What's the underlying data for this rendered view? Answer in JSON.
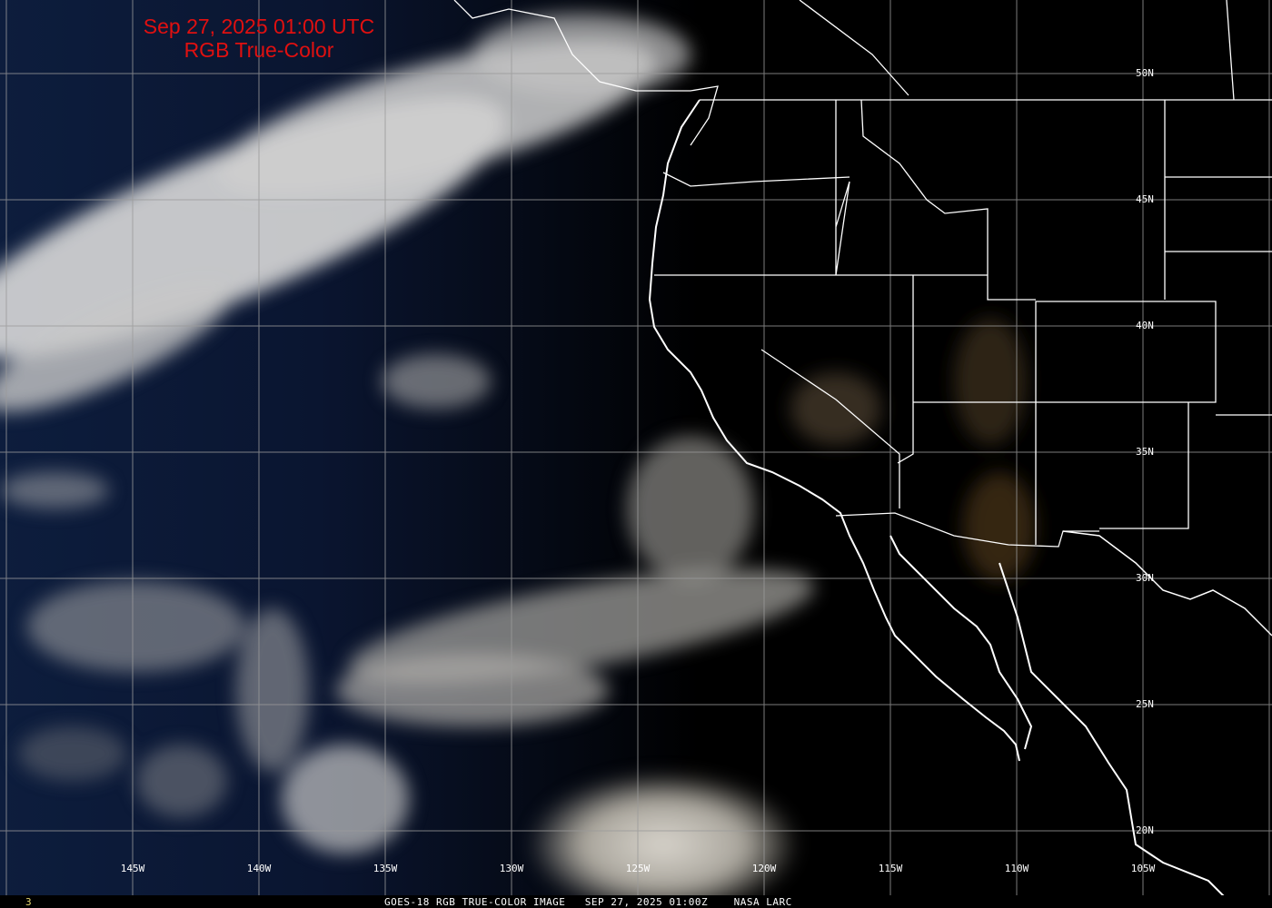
{
  "header": {
    "timestamp": "Sep 27, 2025 01:00 UTC",
    "product": "RGB True-Color"
  },
  "longitude_labels": [
    "145W",
    "140W",
    "135W",
    "130W",
    "125W",
    "120W",
    "115W",
    "110W",
    "105W"
  ],
  "latitude_labels": [
    "50N",
    "45N",
    "40N",
    "35N",
    "30N",
    "25N",
    "20N"
  ],
  "footer": {
    "frame_number": "3",
    "caption": "GOES-18 RGB TRUE-COLOR IMAGE   SEP 27, 2025 01:00Z    NASA LARC"
  },
  "colors": {
    "title": "#e01010",
    "ocean": "#0b1834",
    "night": "#000000",
    "cloud": "#cfcfcf",
    "grid": "#9a9a9a",
    "coastline": "#ffffff"
  }
}
